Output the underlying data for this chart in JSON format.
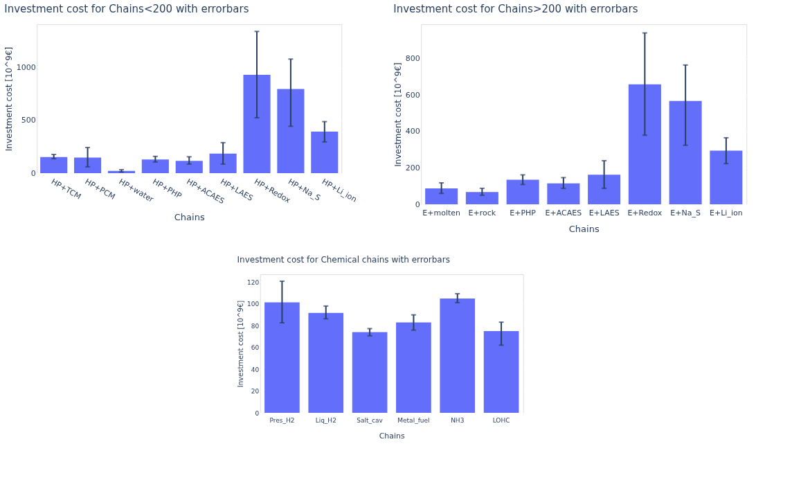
{
  "chart_data": [
    {
      "type": "bar",
      "title": "Investment cost for Chains<200 with errorbars",
      "xlabel": "Chains",
      "ylabel": "Investment cost [10^9€]",
      "categories": [
        "HP+TCM",
        "HP+PCM",
        "HP+water",
        "HP+PHP",
        "HP+ACAES",
        "HP+LAES",
        "HP+Redox",
        "HP+Na_S",
        "HP+Li_ion"
      ],
      "values": [
        152,
        148,
        22,
        130,
        117,
        185,
        932,
        797,
        393
      ],
      "errors": [
        [
          137,
          177
        ],
        [
          60,
          243
        ],
        [
          11,
          33
        ],
        [
          106,
          159
        ],
        [
          86,
          155
        ],
        [
          86,
          289
        ],
        [
          525,
          1342
        ],
        [
          444,
          1080
        ],
        [
          296,
          488
        ]
      ],
      "color": "#636efa",
      "ylim": [
        0,
        1410
      ],
      "yticks": [
        0,
        500,
        {
          "value": 1000,
          "label": "1000"
        }
      ],
      "grid": "y"
    },
    {
      "type": "bar",
      "title": "Investment cost for Chains>200 with errorbars",
      "xlabel": "Chains",
      "ylabel": "Investment cost [10^9€]",
      "categories": [
        "E+molten",
        "E+rock",
        "E+PHP",
        "E+ACAES",
        "E+LAES",
        "E+Redox",
        "E+Na_S",
        "E+Li_ion"
      ],
      "values": [
        88,
        68,
        135,
        115,
        163,
        660,
        568,
        295
      ],
      "errors": [
        [
          60,
          118
        ],
        [
          50,
          88
        ],
        [
          109,
          162
        ],
        [
          88,
          147
        ],
        [
          88,
          240
        ],
        [
          380,
          942
        ],
        [
          325,
          766
        ],
        [
          224,
          366
        ]
      ],
      "color": "#636efa",
      "ylim": [
        0,
        990
      ],
      "yticks": [
        0,
        200,
        400,
        600,
        800
      ],
      "grid": "y"
    },
    {
      "type": "bar",
      "title": "Investment cost for Chemical chains with errorbars",
      "xlabel": "Chains",
      "ylabel": "Investment cost [10^9€]",
      "categories": [
        "Pres_H2",
        "Liq_H2",
        "Salt_cav",
        "Metal_fuel",
        "NH3",
        "LOHC"
      ],
      "values": [
        101.3,
        91.6,
        73.9,
        82.9,
        104.8,
        75.0
      ],
      "errors": [
        [
          82.5,
          120.7
        ],
        [
          86.2,
          97.9
        ],
        [
          70.6,
          77.2
        ],
        [
          75.8,
          89.8
        ],
        [
          101.0,
          109.2
        ],
        [
          62.0,
          83.1
        ]
      ],
      "color": "#636efa",
      "ylim": [
        0,
        127
      ],
      "yticks": [
        0,
        20,
        40,
        60,
        80,
        100,
        120
      ],
      "grid": "y"
    }
  ]
}
